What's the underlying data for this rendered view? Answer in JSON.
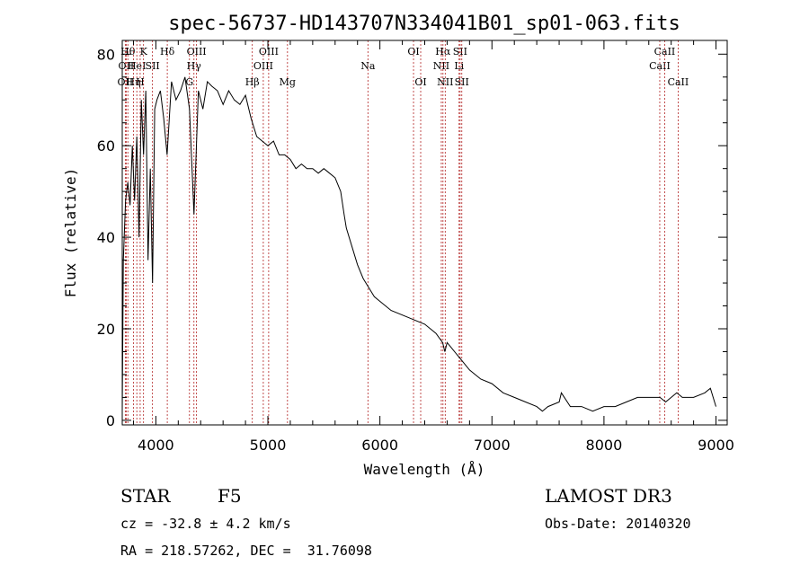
{
  "chart_data": {
    "type": "line",
    "title": "spec-56737-HD143707N334041B01_sp01-063.fits",
    "xlabel": "Wavelength (Å)",
    "ylabel": "Flux (relative)",
    "xlim": [
      3700,
      9100
    ],
    "ylim": [
      -1,
      83
    ],
    "xticks": [
      4000,
      5000,
      6000,
      7000,
      8000,
      9000
    ],
    "yticks": [
      0,
      20,
      40,
      60,
      80
    ],
    "grid": false,
    "series": [
      {
        "x": [
          3700,
          3710,
          3730,
          3750,
          3770,
          3790,
          3810,
          3830,
          3850,
          3870,
          3890,
          3910,
          3930,
          3950,
          3970,
          3990,
          4010,
          4040,
          4070,
          4100,
          4140,
          4180,
          4220,
          4260,
          4300,
          4340,
          4380,
          4420,
          4460,
          4500,
          4550,
          4600,
          4650,
          4700,
          4750,
          4800,
          4850,
          4900,
          4950,
          5000,
          5050,
          5100,
          5150,
          5200,
          5250,
          5300,
          5350,
          5400,
          5450,
          5500,
          5550,
          5600,
          5650,
          5680,
          5700,
          5750,
          5800,
          5850,
          5900,
          5950,
          6000,
          6100,
          6200,
          6300,
          6400,
          6500,
          6560,
          6580,
          6600,
          6700,
          6800,
          6900,
          7000,
          7100,
          7200,
          7300,
          7400,
          7450,
          7500,
          7600,
          7620,
          7700,
          7800,
          7900,
          8000,
          8100,
          8200,
          8300,
          8400,
          8500,
          8550,
          8600,
          8650,
          8700,
          8800,
          8900,
          8950,
          9000
        ],
        "y": [
          2,
          35,
          48,
          52,
          47,
          60,
          48,
          62,
          40,
          70,
          58,
          72,
          35,
          55,
          30,
          68,
          70,
          72,
          66,
          58,
          74,
          70,
          72,
          75,
          68,
          45,
          72,
          68,
          74,
          73,
          72,
          69,
          72,
          70,
          69,
          71,
          66,
          62,
          61,
          60,
          61,
          58,
          58,
          57,
          55,
          56,
          55,
          55,
          54,
          55,
          54,
          53,
          50,
          45,
          42,
          38,
          34,
          31,
          29,
          27,
          26,
          24,
          23,
          22,
          21,
          19,
          17,
          15,
          17,
          14,
          11,
          9,
          8,
          6,
          5,
          4,
          3,
          2,
          3,
          4,
          6,
          3,
          3,
          2,
          3,
          3,
          4,
          5,
          5,
          5,
          4,
          5,
          6,
          5,
          5,
          6,
          7,
          3
        ]
      }
    ],
    "spectral_lines": [
      {
        "wl": 3727,
        "label": "OII",
        "row": 2
      },
      {
        "wl": 3735,
        "label": "OII",
        "row": 1
      },
      {
        "wl": 3750,
        "label": "Hθ",
        "row": 0
      },
      {
        "wl": 3800,
        "label": "Hη",
        "row": 2
      },
      {
        "wl": 3830,
        "label": "HeI",
        "row": 1
      },
      {
        "wl": 3860,
        "label": "H",
        "row": 2
      },
      {
        "wl": 3890,
        "label": "K",
        "row": 0
      },
      {
        "wl": 3970,
        "label": "SII",
        "row": 1
      },
      {
        "wl": 4102,
        "label": "Hδ",
        "row": 0
      },
      {
        "wl": 4300,
        "label": "G",
        "row": 2
      },
      {
        "wl": 4340,
        "label": "Hγ",
        "row": 1
      },
      {
        "wl": 4363,
        "label": "OIII",
        "row": 0
      },
      {
        "wl": 4861,
        "label": "Hβ",
        "row": 2
      },
      {
        "wl": 4959,
        "label": "OIII",
        "row": 1
      },
      {
        "wl": 5007,
        "label": "OIII",
        "row": 0
      },
      {
        "wl": 5175,
        "label": "Mg",
        "row": 2
      },
      {
        "wl": 5893,
        "label": "Na",
        "row": 1
      },
      {
        "wl": 6300,
        "label": "OI",
        "row": 0
      },
      {
        "wl": 6364,
        "label": "OI",
        "row": 2
      },
      {
        "wl": 6548,
        "label": "NII",
        "row": 1
      },
      {
        "wl": 6563,
        "label": "Hα",
        "row": 0
      },
      {
        "wl": 6583,
        "label": "NII",
        "row": 2
      },
      {
        "wl": 6707,
        "label": "Li",
        "row": 1
      },
      {
        "wl": 6716,
        "label": "SII",
        "row": 0
      },
      {
        "wl": 6731,
        "label": "SII",
        "row": 2
      },
      {
        "wl": 8498,
        "label": "CaII",
        "row": 1
      },
      {
        "wl": 8542,
        "label": "CaII",
        "row": 0
      },
      {
        "wl": 8662,
        "label": "CaII",
        "row": 2
      }
    ]
  },
  "info": {
    "class_label": "STAR",
    "subclass": "F5",
    "survey": "LAMOST DR3",
    "cz": "cz = -32.8 ± 4.2 km/s",
    "obs_date": "Obs-Date: 20140320",
    "coords": "RA = 218.57262, DEC =  31.76098"
  },
  "colors": {
    "line_marker": "#b22222",
    "spectrum": "#000000"
  }
}
